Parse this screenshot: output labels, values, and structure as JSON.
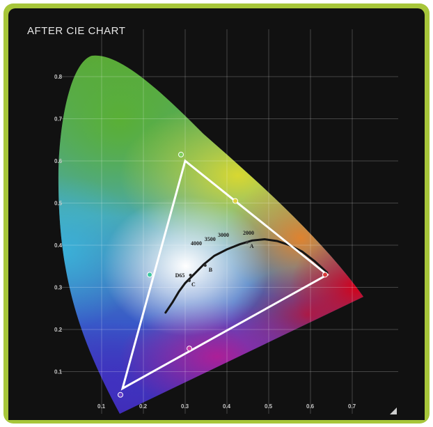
{
  "chart_data": {
    "type": "scatter",
    "title": "AFTER CIE CHART",
    "xlabel": "",
    "ylabel": "",
    "xlim": [
      0.0,
      0.8
    ],
    "ylim": [
      0.0,
      0.9
    ],
    "x_ticks": [
      "0.1",
      "0.2",
      "0.3",
      "0.4",
      "0.5",
      "0.6",
      "0.7"
    ],
    "y_ticks": [
      "0.1",
      "0.2",
      "0.3",
      "0.4",
      "0.5",
      "0.6",
      "0.7",
      "0.8"
    ],
    "grid": true,
    "gamut_triangle": {
      "red": [
        0.64,
        0.33
      ],
      "green": [
        0.3,
        0.6
      ],
      "blue": [
        0.15,
        0.06
      ],
      "color": "#ffffff"
    },
    "measured_points": [
      {
        "x": 0.635,
        "y": 0.33,
        "color": "#d83a3a"
      },
      {
        "x": 0.29,
        "y": 0.615,
        "color": "#7dcf5a"
      },
      {
        "x": 0.145,
        "y": 0.045,
        "color": "#6a3fc8"
      },
      {
        "x": 0.215,
        "y": 0.33,
        "color": "#3fc7a0"
      },
      {
        "x": 0.42,
        "y": 0.505,
        "color": "#e2d23a"
      },
      {
        "x": 0.31,
        "y": 0.155,
        "color": "#c83aa8"
      }
    ],
    "white_points": [
      {
        "label": "D65",
        "x": 0.3127,
        "y": 0.329
      },
      {
        "label": "C",
        "x": 0.31,
        "y": 0.316
      },
      {
        "label": "B",
        "x": 0.348,
        "y": 0.352
      },
      {
        "label": "A",
        "x": 0.448,
        "y": 0.407
      }
    ],
    "cct_labels": [
      "2000",
      "3000",
      "3500",
      "4000"
    ],
    "planckian_locus": [
      [
        0.253,
        0.24
      ],
      [
        0.27,
        0.265
      ],
      [
        0.285,
        0.29
      ],
      [
        0.3,
        0.31
      ],
      [
        0.32,
        0.33
      ],
      [
        0.345,
        0.355
      ],
      [
        0.37,
        0.375
      ],
      [
        0.4,
        0.39
      ],
      [
        0.43,
        0.402
      ],
      [
        0.46,
        0.411
      ],
      [
        0.49,
        0.414
      ],
      [
        0.52,
        0.41
      ],
      [
        0.55,
        0.4
      ],
      [
        0.58,
        0.385
      ],
      [
        0.61,
        0.362
      ],
      [
        0.64,
        0.335
      ]
    ]
  }
}
